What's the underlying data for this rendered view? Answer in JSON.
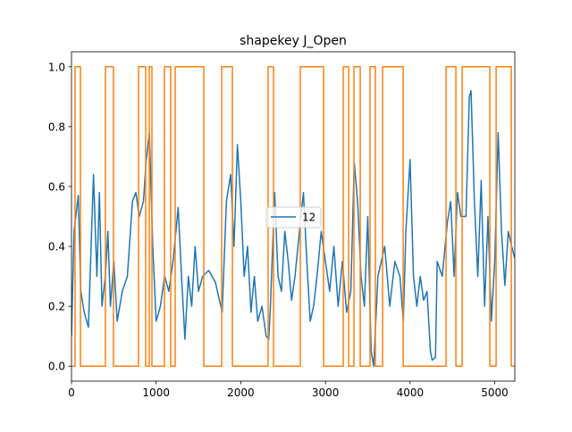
{
  "chart_data": {
    "type": "line",
    "title": "shapekey J_Open",
    "xlim": [
      0,
      5237
    ],
    "ylim": [
      -0.05,
      1.05
    ],
    "xticks": [
      0,
      1000,
      2000,
      3000,
      4000,
      5000
    ],
    "yticks": [
      {
        "value": 0,
        "label": "0.0"
      },
      0.2,
      0.4,
      0.6,
      0.8,
      {
        "value": 1,
        "label": "1.0"
      }
    ],
    "legend": "center",
    "series": [
      {
        "name": "12",
        "color": "#1f77b4",
        "x": [
          0,
          30,
          80,
          110,
          150,
          200,
          260,
          300,
          330,
          360,
          400,
          430,
          460,
          500,
          540,
          600,
          660,
          720,
          760,
          800,
          850,
          880,
          920,
          960,
          1000,
          1050,
          1100,
          1150,
          1200,
          1260,
          1300,
          1340,
          1380,
          1420,
          1460,
          1500,
          1550,
          1620,
          1700,
          1780,
          1830,
          1880,
          1920,
          1960,
          2000,
          2040,
          2080,
          2120,
          2160,
          2200,
          2250,
          2300,
          2330,
          2350,
          2400,
          2440,
          2480,
          2520,
          2560,
          2600,
          2640,
          2700,
          2740,
          2780,
          2820,
          2860,
          2900,
          2950,
          3000,
          3050,
          3100,
          3150,
          3200,
          3250,
          3300,
          3340,
          3380,
          3420,
          3460,
          3500,
          3540,
          3570,
          3620,
          3700,
          3760,
          3820,
          3880,
          3920,
          3950,
          4000,
          4040,
          4080,
          4120,
          4160,
          4200,
          4240,
          4260,
          4300,
          4320,
          4380,
          4440,
          4480,
          4520,
          4560,
          4600,
          4660,
          4700,
          4720,
          4760,
          4800,
          4840,
          4880,
          4920,
          4960,
          5000,
          5040,
          5080,
          5120,
          5160,
          5200,
          5237
        ],
        "values": [
          0.1,
          0.45,
          0.57,
          0.25,
          0.18,
          0.13,
          0.64,
          0.3,
          0.58,
          0.2,
          0.3,
          0.45,
          0.2,
          0.35,
          0.15,
          0.25,
          0.3,
          0.55,
          0.58,
          0.5,
          0.55,
          0.68,
          0.78,
          0.4,
          0.15,
          0.2,
          0.3,
          0.25,
          0.35,
          0.53,
          0.3,
          0.09,
          0.3,
          0.2,
          0.4,
          0.25,
          0.3,
          0.32,
          0.28,
          0.18,
          0.55,
          0.64,
          0.4,
          0.74,
          0.55,
          0.3,
          0.4,
          0.18,
          0.3,
          0.15,
          0.2,
          0.1,
          0.09,
          0.2,
          0.58,
          0.3,
          0.25,
          0.45,
          0.35,
          0.22,
          0.3,
          0.47,
          0.58,
          0.35,
          0.15,
          0.2,
          0.3,
          0.45,
          0.35,
          0.25,
          0.4,
          0.2,
          0.35,
          0.18,
          0.25,
          0.68,
          0.55,
          0.3,
          0.2,
          0.5,
          0.05,
          0,
          0.3,
          0.4,
          0.2,
          0.35,
          0.3,
          0.15,
          0.45,
          0.69,
          0.3,
          0.2,
          0.3,
          0.22,
          0.25,
          0.05,
          0.02,
          0.03,
          0.35,
          0.3,
          0.48,
          0.55,
          0.3,
          0.58,
          0.5,
          0.5,
          0.9,
          0.92,
          0.55,
          0.3,
          0.62,
          0.2,
          0.5,
          0.15,
          0.35,
          0.78,
          0.45,
          0.27,
          0.45,
          0.4,
          0.36
        ]
      },
      {
        "color": "#ff7f0e",
        "x": [
          0,
          42,
          42,
          106,
          106,
          401,
          401,
          496,
          496,
          792,
          792,
          876,
          876,
          919,
          919,
          950,
          950,
          1098,
          1098,
          1172,
          1172,
          1225,
          1225,
          1563,
          1563,
          1774,
          1774,
          1901,
          1901,
          2323,
          2323,
          2387,
          2387,
          2703,
          2703,
          2978,
          2978,
          3210,
          3210,
          3274,
          3274,
          3337,
          3337,
          3411,
          3411,
          3527,
          3527,
          3590,
          3590,
          3675,
          3675,
          3918,
          3918,
          4425,
          4425,
          4541,
          4541,
          4615,
          4615,
          4942,
          4942,
          5016,
          5016,
          5196,
          5196,
          5237
        ],
        "values": [
          0,
          0,
          1,
          1,
          0,
          0,
          1,
          1,
          0,
          0,
          1,
          1,
          0,
          0,
          1,
          1,
          0,
          0,
          1,
          1,
          0,
          0,
          1,
          1,
          0,
          0,
          1,
          1,
          0,
          0,
          1,
          1,
          0,
          0,
          1,
          1,
          0,
          0,
          1,
          1,
          0,
          0,
          1,
          1,
          0,
          0,
          1,
          1,
          0,
          0,
          1,
          1,
          0,
          0,
          1,
          1,
          0,
          0,
          1,
          1,
          0,
          0,
          1,
          1,
          0,
          0
        ]
      }
    ]
  }
}
